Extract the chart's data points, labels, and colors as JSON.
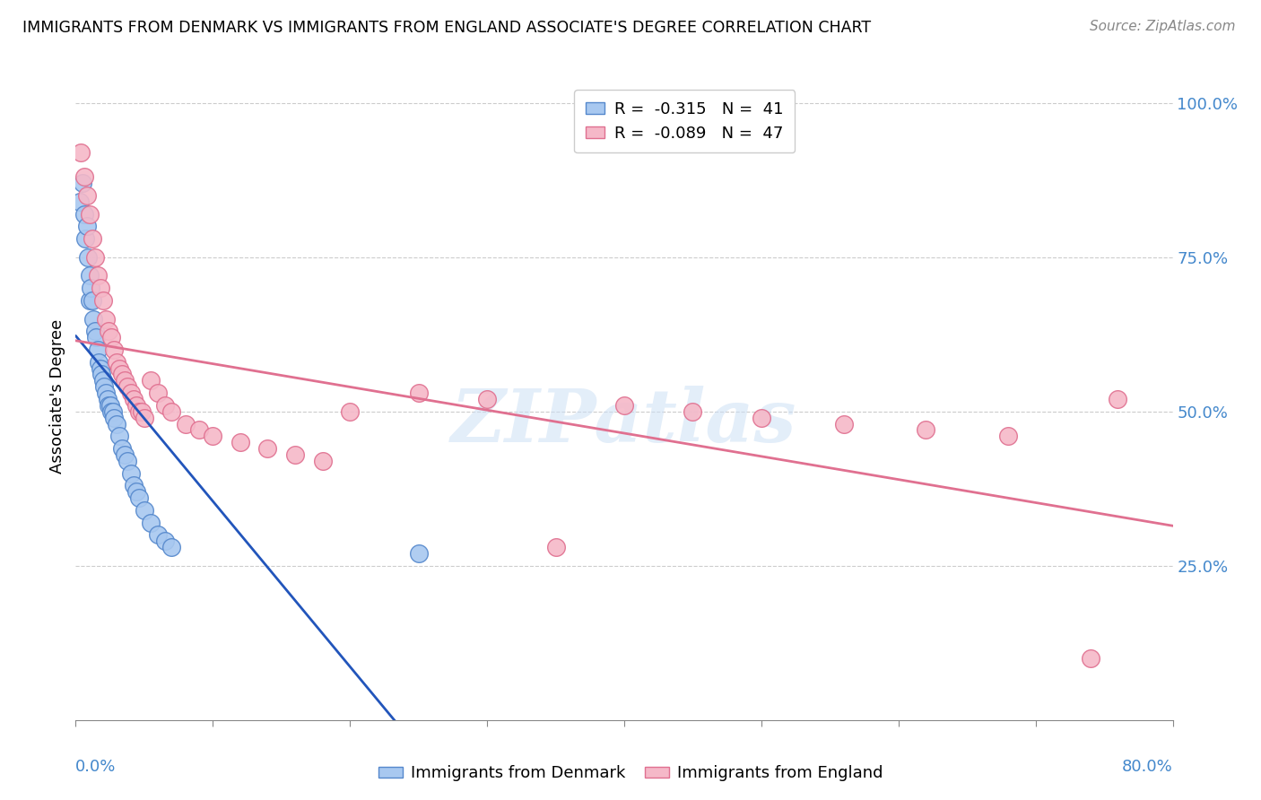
{
  "title": "IMMIGRANTS FROM DENMARK VS IMMIGRANTS FROM ENGLAND ASSOCIATE'S DEGREE CORRELATION CHART",
  "source": "Source: ZipAtlas.com",
  "ylabel": "Associate's Degree",
  "ylabel_right_labels": [
    "100.0%",
    "75.0%",
    "50.0%",
    "25.0%"
  ],
  "ylabel_right_values": [
    1.0,
    0.75,
    0.5,
    0.25
  ],
  "legend1_R": "-0.315",
  "legend1_N": "41",
  "legend2_R": "-0.089",
  "legend2_N": "47",
  "denmark_color": "#a8c8f0",
  "england_color": "#f5b8c8",
  "denmark_edge": "#5588cc",
  "england_edge": "#e07090",
  "watermark": "ZIPatlas",
  "xlim": [
    0.0,
    0.8
  ],
  "ylim": [
    0.0,
    1.05
  ],
  "grid_color": "#cccccc",
  "dk_x": [
    0.003,
    0.005,
    0.006,
    0.007,
    0.008,
    0.009,
    0.01,
    0.01,
    0.011,
    0.012,
    0.013,
    0.014,
    0.015,
    0.016,
    0.017,
    0.018,
    0.019,
    0.02,
    0.021,
    0.022,
    0.023,
    0.024,
    0.025,
    0.026,
    0.027,
    0.028,
    0.03,
    0.032,
    0.034,
    0.036,
    0.038,
    0.04,
    0.042,
    0.044,
    0.046,
    0.05,
    0.055,
    0.06,
    0.065,
    0.07,
    0.25
  ],
  "dk_y": [
    0.84,
    0.87,
    0.82,
    0.78,
    0.8,
    0.75,
    0.72,
    0.68,
    0.7,
    0.68,
    0.65,
    0.63,
    0.62,
    0.6,
    0.58,
    0.57,
    0.56,
    0.55,
    0.54,
    0.53,
    0.52,
    0.51,
    0.51,
    0.5,
    0.5,
    0.49,
    0.48,
    0.46,
    0.44,
    0.43,
    0.42,
    0.4,
    0.38,
    0.37,
    0.36,
    0.34,
    0.32,
    0.3,
    0.29,
    0.28,
    0.27
  ],
  "en_x": [
    0.004,
    0.006,
    0.008,
    0.01,
    0.012,
    0.014,
    0.016,
    0.018,
    0.02,
    0.022,
    0.024,
    0.026,
    0.028,
    0.03,
    0.032,
    0.034,
    0.036,
    0.038,
    0.04,
    0.042,
    0.044,
    0.046,
    0.048,
    0.05,
    0.055,
    0.06,
    0.065,
    0.07,
    0.08,
    0.09,
    0.1,
    0.12,
    0.14,
    0.16,
    0.18,
    0.2,
    0.25,
    0.3,
    0.35,
    0.4,
    0.45,
    0.5,
    0.56,
    0.62,
    0.68,
    0.74,
    0.76
  ],
  "en_y": [
    0.92,
    0.88,
    0.85,
    0.82,
    0.78,
    0.75,
    0.72,
    0.7,
    0.68,
    0.65,
    0.63,
    0.62,
    0.6,
    0.58,
    0.57,
    0.56,
    0.55,
    0.54,
    0.53,
    0.52,
    0.51,
    0.5,
    0.5,
    0.49,
    0.55,
    0.53,
    0.51,
    0.5,
    0.48,
    0.47,
    0.46,
    0.45,
    0.44,
    0.43,
    0.42,
    0.5,
    0.53,
    0.52,
    0.28,
    0.51,
    0.5,
    0.49,
    0.48,
    0.47,
    0.46,
    0.1,
    0.52
  ]
}
